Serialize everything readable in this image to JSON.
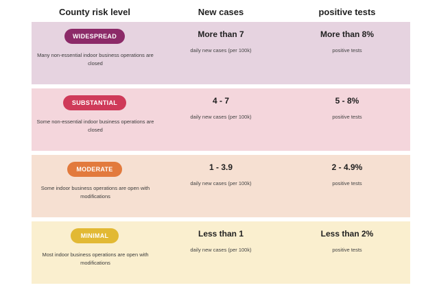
{
  "header": {
    "col1": "County risk level",
    "col2": "New cases",
    "col3": "positive tests"
  },
  "rows": [
    {
      "badge": "WIDESPREAD",
      "badge_color": "#8c2a68",
      "row_color": "#e6d3e0",
      "description": "Many non-essential indoor business operations are closed",
      "new_cases": "More than 7",
      "new_cases_unit": "daily new cases (per 100k)",
      "positive_tests": "More than 8%",
      "positive_tests_unit": "positive tests"
    },
    {
      "badge": "SUBSTANTIAL",
      "badge_color": "#cf3a59",
      "row_color": "#f4d6dc",
      "description": "Some non-essential indoor business operations are closed",
      "new_cases": "4 - 7",
      "new_cases_unit": "daily new cases (per 100k)",
      "positive_tests": "5 - 8%",
      "positive_tests_unit": "positive tests"
    },
    {
      "badge": "MODERATE",
      "badge_color": "#e27a3d",
      "row_color": "#f6e0d2",
      "description": "Some indoor business operations are open with modifications",
      "new_cases": "1 - 3.9",
      "new_cases_unit": "daily new cases (per 100k)",
      "positive_tests": "2 - 4.9%",
      "positive_tests_unit": "positive tests"
    },
    {
      "badge": "MINIMAL",
      "badge_color": "#e2b934",
      "row_color": "#faefcf",
      "description": "Most indoor business operations are open with modifications",
      "new_cases": "Less than 1",
      "new_cases_unit": "daily new cases (per 100k)",
      "positive_tests": "Less than 2%",
      "positive_tests_unit": "positive tests"
    }
  ]
}
